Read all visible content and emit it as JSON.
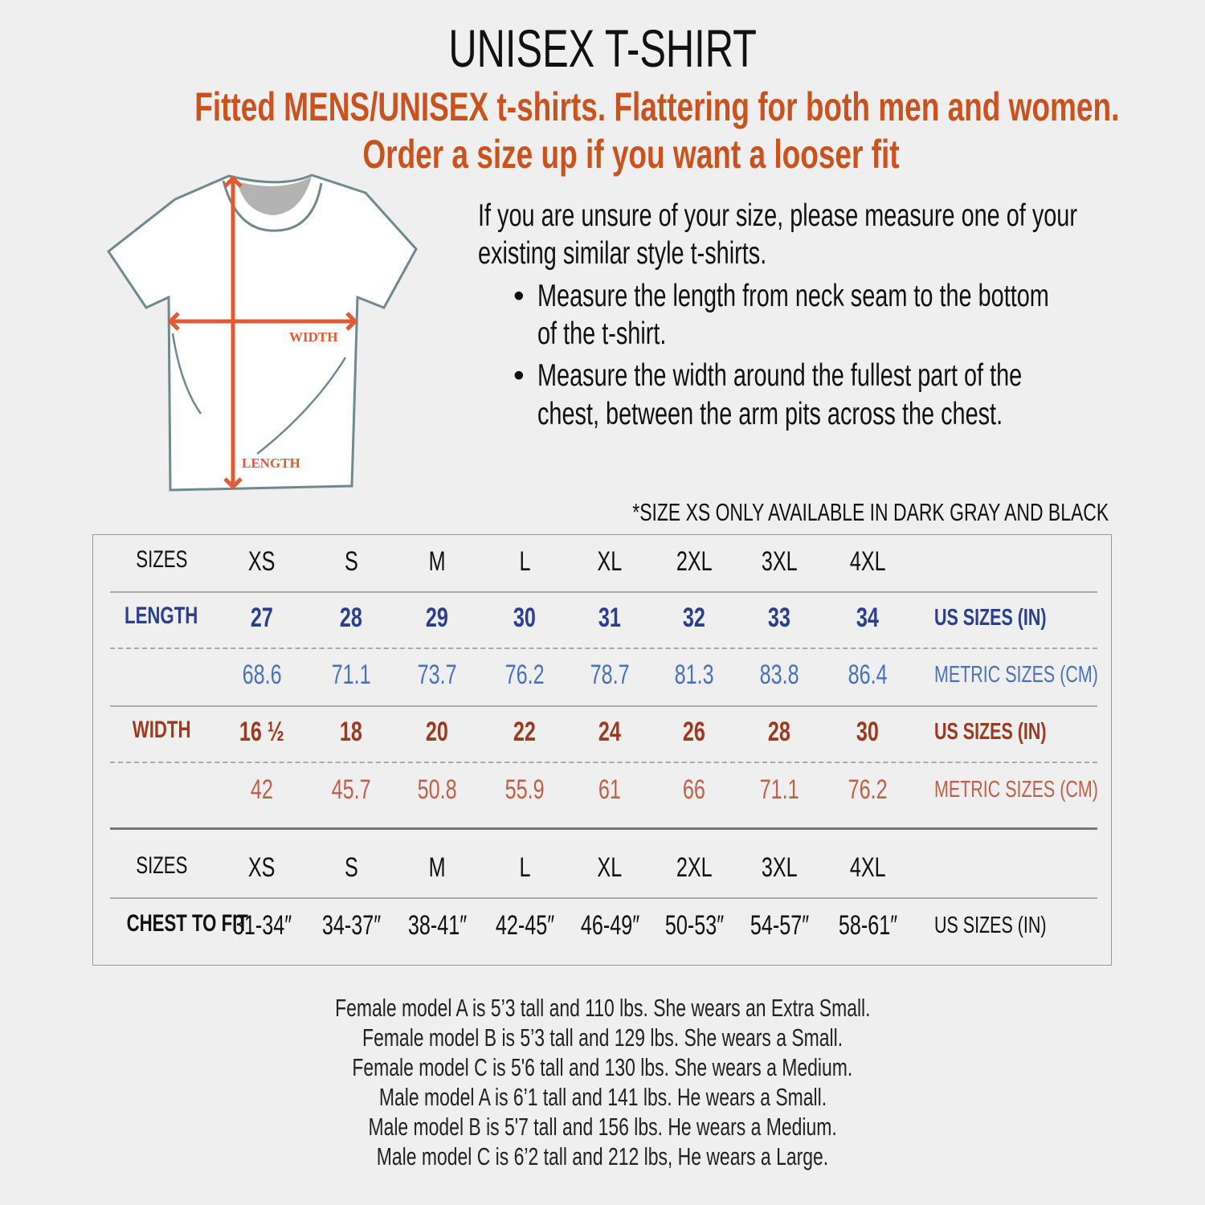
{
  "header": {
    "title": "UNISEX T-SHIRT",
    "subtitle_line1": "Fitted MENS/UNISEX t-shirts. Flattering for both men and women.",
    "subtitle_line2": "Order a size up if you want a looser fit"
  },
  "diagram": {
    "width_label": "WIDTH",
    "length_label": "LENGTH",
    "arrow_color": "#e05a33",
    "outline_color": "#6e8a8e"
  },
  "instructions": {
    "intro_line1": "If you are unsure of your size, please measure one of your",
    "intro_line2": "existing similar style t-shirts.",
    "bullets": [
      [
        "Measure the length from neck seam to the bottom",
        "of the t-shirt."
      ],
      [
        "Measure the width around the fullest part of the",
        "chest, between the arm pits across the chest."
      ]
    ]
  },
  "availability_note": "*SIZE XS ONLY AVAILABLE IN DARK GRAY AND BLACK",
  "colors": {
    "length": "#2b3f8f",
    "length_metric": "#4a72b8",
    "width": "#9c3a1f",
    "width_metric": "#c0604a",
    "accent": "#c9531f"
  },
  "size_table": {
    "sizes_label": "SIZES",
    "sizes": [
      "XS",
      "S",
      "M",
      "L",
      "XL",
      "2XL",
      "3XL",
      "4XL"
    ],
    "length": {
      "label": "LENGTH",
      "us": [
        "27",
        "28",
        "29",
        "30",
        "31",
        "32",
        "33",
        "34"
      ],
      "metric": [
        "68.6",
        "71.1",
        "73.7",
        "76.2",
        "78.7",
        "81.3",
        "83.8",
        "86.4"
      ]
    },
    "width": {
      "label": "WIDTH",
      "us": [
        "16 ½",
        "18",
        "20",
        "22",
        "24",
        "26",
        "28",
        "30"
      ],
      "metric": [
        "42",
        "45.7",
        "50.8",
        "55.9",
        "61",
        "66",
        "71.1",
        "76.2"
      ]
    },
    "us_unit": "US SIZES (IN)",
    "metric_unit": "METRIC SIZES (CM)",
    "chest": {
      "label": "CHEST TO FIT",
      "values": [
        "31-34″",
        "34-37″",
        "38-41″",
        "42-45″",
        "46-49″",
        "50-53″",
        "54-57″",
        "58-61″"
      ],
      "unit": "US SIZES (IN)"
    }
  },
  "models": [
    "Female model A is 5’3 tall and 110 lbs. She wears an Extra Small.",
    "Female model B is 5’3 tall and 129 lbs. She wears a Small.",
    "Female model C is 5'6 tall and 130 lbs. She wears a Medium.",
    "Male model A is 6’1 tall and 141 lbs. He wears a Small.",
    "Male model B is 5'7 tall and 156 lbs. He wears a Medium.",
    "Male model C is 6’2 tall and 212 lbs, He wears a Large."
  ]
}
